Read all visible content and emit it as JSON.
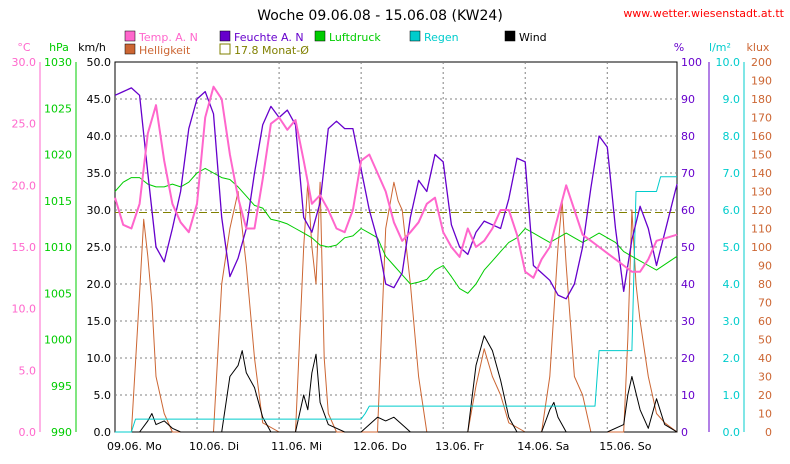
{
  "title": "Woche 09.06.08 - 15.06.08 (KW24)",
  "site": "www.wetter.wiesenstadt.at.tt",
  "colors": {
    "temp": "#ff66cc",
    "humidity": "#6600cc",
    "pressure": "#00cc00",
    "rain": "#00cccc",
    "wind": "#000000",
    "brightness": "#cc6633",
    "monthly_avg": "#808000",
    "grid": "#808080",
    "site": "#ff0000"
  },
  "legend": {
    "row1": [
      {
        "label": "Temp. A. N",
        "color_key": "temp",
        "filled": true
      },
      {
        "label": "Feuchte A. N",
        "color_key": "humidity",
        "filled": true
      },
      {
        "label": "Luftdruck",
        "color_key": "pressure",
        "filled": true
      },
      {
        "label": "Regen",
        "color_key": "rain",
        "filled": true
      },
      {
        "label": "Wind",
        "color_key": "wind",
        "filled": true
      }
    ],
    "row2": [
      {
        "label": "Helligkeit",
        "color_key": "brightness",
        "filled": true
      },
      {
        "label": "17.8 Monat-Ø",
        "color_key": "monthly_avg",
        "filled": false
      }
    ]
  },
  "chart_data": {
    "type": "line",
    "grid": true,
    "x_labels": [
      "09.06. Mo",
      "10.06. Di",
      "11.06. Mi",
      "12.06. Do",
      "13.06. Fr",
      "14.06. Sa",
      "15.06. So"
    ],
    "axes": {
      "temp": {
        "unit": "°C",
        "min": 0,
        "max": 30,
        "ticks": [
          "0.0",
          "5.0",
          "10.0",
          "15.0",
          "20.0",
          "25.0",
          "30.0"
        ]
      },
      "pressure": {
        "unit": "hPa",
        "min": 990,
        "max": 1030,
        "ticks": [
          "990",
          "995",
          "1000",
          "1005",
          "1010",
          "1015",
          "1020",
          "1025",
          "1030"
        ]
      },
      "wind": {
        "unit": "km/h",
        "min": 0,
        "max": 50,
        "ticks": [
          "0.0",
          "5.0",
          "10.0",
          "15.0",
          "20.0",
          "25.0",
          "30.0",
          "35.0",
          "40.0",
          "45.0",
          "50.0"
        ]
      },
      "humidity": {
        "unit": "%",
        "min": 0,
        "max": 100,
        "ticks": [
          "0",
          "10",
          "20",
          "30",
          "40",
          "50",
          "60",
          "70",
          "80",
          "90",
          "100"
        ]
      },
      "rain": {
        "unit": "l/m²",
        "min": 0,
        "max": 10,
        "ticks": [
          "0.0",
          "1.0",
          "2.0",
          "3.0",
          "4.0",
          "5.0",
          "6.0",
          "7.0",
          "8.0",
          "9.0",
          "10.0"
        ]
      },
      "brightness": {
        "unit": "klux",
        "min": 0,
        "max": 200,
        "ticks": [
          "0",
          "10",
          "20",
          "30",
          "40",
          "50",
          "60",
          "70",
          "80",
          "90",
          "100",
          "110",
          "120",
          "130",
          "140",
          "150",
          "160",
          "170",
          "180",
          "190",
          "200"
        ]
      }
    },
    "monthly_avg_temp": 17.8,
    "series": [
      {
        "name": "Temp. A. N",
        "key": "temp",
        "axis": "temp",
        "x": [
          0,
          0.1,
          0.2,
          0.3,
          0.4,
          0.5,
          0.6,
          0.7,
          0.8,
          0.9,
          1.0,
          1.1,
          1.2,
          1.3,
          1.4,
          1.5,
          1.6,
          1.7,
          1.8,
          1.9,
          2.0,
          2.1,
          2.2,
          2.3,
          2.4,
          2.5,
          2.6,
          2.7,
          2.8,
          2.9,
          3.0,
          3.1,
          3.2,
          3.3,
          3.4,
          3.5,
          3.6,
          3.7,
          3.8,
          3.9,
          4.0,
          4.1,
          4.2,
          4.3,
          4.4,
          4.5,
          4.6,
          4.7,
          4.8,
          4.9,
          5.0,
          5.1,
          5.2,
          5.3,
          5.4,
          5.5,
          5.6,
          5.7,
          5.8,
          5.9,
          6.0,
          6.1,
          6.2,
          6.3,
          6.4,
          6.5,
          6.6,
          6.85
        ],
        "y": [
          19.0,
          16.8,
          16.5,
          18.5,
          24.2,
          26.5,
          22.0,
          18.5,
          17.0,
          16.2,
          18.5,
          25.5,
          28.0,
          27.0,
          22.5,
          19.0,
          16.5,
          16.5,
          20.5,
          25.0,
          25.5,
          24.5,
          25.3,
          22.0,
          18.5,
          19.2,
          18.0,
          16.5,
          16.2,
          18.0,
          22.0,
          22.5,
          21.0,
          19.5,
          17.0,
          15.5,
          16.2,
          17.0,
          18.5,
          19.0,
          16.2,
          15.0,
          14.2,
          16.5,
          15.0,
          15.5,
          16.5,
          18.0,
          18.0,
          16.0,
          13.0,
          12.5,
          14.0,
          15.0,
          17.5,
          20.0,
          18.0,
          16.0,
          15.5,
          15.0,
          14.5,
          14.0,
          13.5,
          13.0,
          13.0,
          14.0,
          15.5,
          16.0
        ]
      },
      {
        "name": "Feuchte A. N",
        "key": "humidity",
        "axis": "humidity",
        "x": [
          0,
          0.1,
          0.2,
          0.3,
          0.4,
          0.5,
          0.6,
          0.7,
          0.8,
          0.9,
          1.0,
          1.1,
          1.2,
          1.3,
          1.4,
          1.5,
          1.6,
          1.7,
          1.8,
          1.9,
          2.0,
          2.1,
          2.2,
          2.3,
          2.4,
          2.5,
          2.6,
          2.7,
          2.8,
          2.9,
          3.0,
          3.1,
          3.2,
          3.3,
          3.4,
          3.5,
          3.6,
          3.7,
          3.8,
          3.9,
          4.0,
          4.1,
          4.2,
          4.3,
          4.4,
          4.5,
          4.6,
          4.7,
          4.8,
          4.9,
          5.0,
          5.1,
          5.2,
          5.3,
          5.4,
          5.5,
          5.6,
          5.7,
          5.8,
          5.9,
          6.0,
          6.1,
          6.2,
          6.3,
          6.4,
          6.5,
          6.6,
          6.85
        ],
        "y": [
          91,
          92,
          93,
          91,
          70,
          50,
          46,
          55,
          65,
          82,
          90,
          92,
          86,
          58,
          42,
          47,
          55,
          70,
          83,
          88,
          85,
          87,
          83,
          58,
          54,
          62,
          82,
          84,
          82,
          82,
          71,
          60,
          52,
          40,
          39,
          43,
          58,
          68,
          65,
          75,
          73,
          56,
          50,
          48,
          54,
          57,
          56,
          55,
          63,
          74,
          73,
          45,
          43,
          41,
          37,
          36,
          40,
          50,
          66,
          80,
          77,
          55,
          38,
          52,
          61,
          55,
          45,
          67
        ]
      },
      {
        "name": "Luftdruck",
        "key": "pressure",
        "axis": "pressure",
        "x": [
          0,
          0.1,
          0.2,
          0.3,
          0.4,
          0.5,
          0.6,
          0.7,
          0.8,
          0.9,
          1.0,
          1.1,
          1.2,
          1.3,
          1.4,
          1.5,
          1.6,
          1.7,
          1.8,
          1.9,
          2.0,
          2.1,
          2.2,
          2.3,
          2.4,
          2.5,
          2.6,
          2.7,
          2.8,
          2.9,
          3.0,
          3.1,
          3.2,
          3.3,
          3.4,
          3.5,
          3.6,
          3.7,
          3.8,
          3.9,
          4.0,
          4.1,
          4.2,
          4.3,
          4.4,
          4.5,
          4.6,
          4.7,
          4.8,
          4.9,
          5.0,
          5.1,
          5.2,
          5.3,
          5.4,
          5.5,
          5.6,
          5.7,
          5.8,
          5.9,
          6.0,
          6.1,
          6.2,
          6.3,
          6.4,
          6.5,
          6.6,
          6.85
        ],
        "y": [
          1016.0,
          1017.0,
          1017.5,
          1017.5,
          1016.8,
          1016.5,
          1016.5,
          1016.8,
          1016.5,
          1017.0,
          1018.0,
          1018.5,
          1018.0,
          1017.5,
          1017.3,
          1016.5,
          1015.5,
          1014.5,
          1014.2,
          1013.0,
          1012.8,
          1012.5,
          1012.0,
          1011.5,
          1011.0,
          1010.2,
          1010.0,
          1010.2,
          1011.0,
          1011.2,
          1012.0,
          1011.5,
          1011.0,
          1009.0,
          1008.0,
          1007.0,
          1006.0,
          1006.2,
          1006.5,
          1007.5,
          1008.0,
          1006.8,
          1005.5,
          1005.0,
          1006.0,
          1007.5,
          1008.5,
          1009.5,
          1010.5,
          1011.0,
          1012.0,
          1011.5,
          1011.0,
          1010.5,
          1011.0,
          1011.5,
          1011.0,
          1010.5,
          1011.0,
          1011.5,
          1011.0,
          1010.5,
          1009.5,
          1009.0,
          1008.5,
          1008.0,
          1007.5,
          1009.0
        ]
      },
      {
        "name": "Regen",
        "key": "rain",
        "axis": "rain",
        "x": [
          0,
          0.2,
          0.25,
          1.0,
          2.0,
          3.0,
          3.05,
          3.1,
          4.0,
          5.0,
          5.85,
          5.9,
          6.3,
          6.35,
          6.6,
          6.65,
          6.85
        ],
        "y": [
          0,
          0,
          0.35,
          0.35,
          0.35,
          0.35,
          0.5,
          0.7,
          0.7,
          0.7,
          0.7,
          2.2,
          2.2,
          6.5,
          6.5,
          6.9,
          6.9
        ]
      },
      {
        "name": "Wind",
        "key": "wind",
        "axis": "wind",
        "x": [
          0,
          0.3,
          0.4,
          0.45,
          0.5,
          0.6,
          0.7,
          0.8,
          1.0,
          1.3,
          1.4,
          1.5,
          1.55,
          1.6,
          1.7,
          1.8,
          1.9,
          2.0,
          2.2,
          2.3,
          2.35,
          2.4,
          2.45,
          2.5,
          2.6,
          2.8,
          3.0,
          3.2,
          3.3,
          3.4,
          3.5,
          3.6,
          3.8,
          4.0,
          4.3,
          4.4,
          4.5,
          4.6,
          4.7,
          4.8,
          4.9,
          5.0,
          5.2,
          5.3,
          5.35,
          5.4,
          5.5,
          5.8,
          6.0,
          6.2,
          6.25,
          6.3,
          6.4,
          6.5,
          6.6,
          6.7,
          6.85
        ],
        "y": [
          0,
          0,
          1.5,
          2.5,
          1.0,
          1.5,
          0.5,
          0,
          0,
          0,
          7.5,
          9.0,
          11.0,
          8.0,
          6.0,
          2.0,
          0,
          0,
          0,
          5.0,
          3.0,
          8.0,
          10.5,
          4.0,
          1.0,
          0,
          0,
          2.0,
          1.5,
          2.0,
          1.0,
          0,
          0,
          0,
          0,
          9.0,
          13.0,
          11.0,
          7.0,
          2.0,
          0,
          0,
          0,
          3.0,
          4.0,
          2.0,
          0,
          0,
          0,
          1.0,
          5.0,
          7.5,
          3.0,
          0.5,
          4.5,
          1.0,
          0
        ]
      },
      {
        "name": "Helligkeit",
        "key": "brightness",
        "axis": "brightness",
        "x": [
          0,
          0.2,
          0.3,
          0.35,
          0.4,
          0.45,
          0.5,
          0.6,
          0.7,
          0.8,
          1.0,
          1.2,
          1.3,
          1.4,
          1.5,
          1.6,
          1.7,
          1.8,
          2.0,
          2.2,
          2.3,
          2.35,
          2.4,
          2.45,
          2.5,
          2.55,
          2.6,
          2.7,
          2.8,
          3.0,
          3.2,
          3.3,
          3.4,
          3.45,
          3.5,
          3.6,
          3.7,
          3.8,
          4.0,
          4.3,
          4.4,
          4.45,
          4.5,
          4.6,
          4.7,
          4.8,
          5.0,
          5.2,
          5.3,
          5.4,
          5.45,
          5.5,
          5.6,
          5.7,
          5.8,
          6.0,
          6.2,
          6.25,
          6.3,
          6.35,
          6.4,
          6.5,
          6.6,
          6.7,
          6.85
        ],
        "y": [
          0,
          0,
          75,
          115,
          95,
          70,
          30,
          10,
          0,
          0,
          0,
          0,
          80,
          110,
          130,
          90,
          40,
          5,
          0,
          0,
          100,
          135,
          100,
          80,
          135,
          40,
          10,
          0,
          0,
          0,
          0,
          110,
          135,
          125,
          120,
          80,
          30,
          0,
          0,
          0,
          25,
          35,
          45,
          30,
          20,
          5,
          0,
          0,
          30,
          100,
          125,
          90,
          30,
          20,
          0,
          0,
          0,
          50,
          120,
          80,
          60,
          30,
          10,
          5,
          0
        ]
      }
    ]
  }
}
